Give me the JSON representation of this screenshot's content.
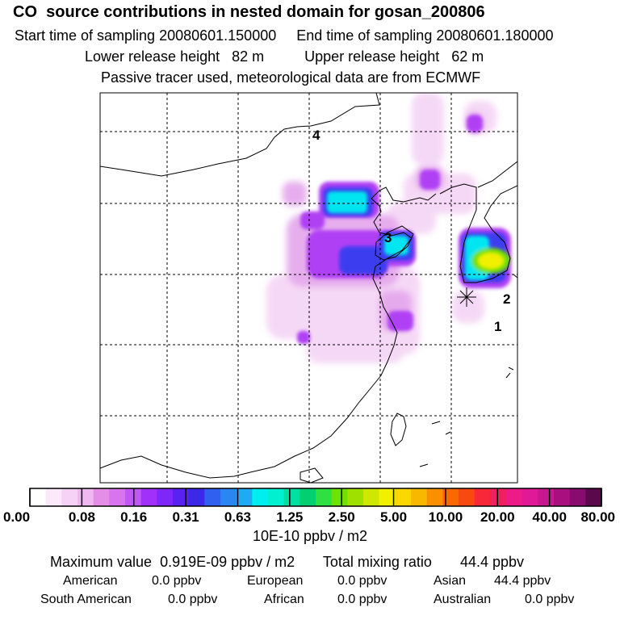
{
  "header": {
    "title": "CO  source contributions in nested domain for gosan_200806",
    "start_label": "Start time of sampling 20080601.150000",
    "end_label": "End time of sampling 20080601.180000",
    "lower_label": "Lower release height   82 m",
    "upper_label": "Upper release height   62 m",
    "note": "Passive tracer used, meteorological data are from ECMWF"
  },
  "chart_data": {
    "type": "heatmap",
    "title": "CO  source contributions in nested domain for gosan_200806",
    "grid": true,
    "annotations": [
      "1",
      "2",
      "3",
      "4"
    ],
    "colorbar": {
      "unit": "10E-10 ppbv / m2",
      "tick_labels": [
        "0.00",
        "0.08",
        "0.16",
        "0.31",
        "0.63",
        "1.25",
        "2.50",
        "5.00",
        "10.00",
        "20.00",
        "40.00",
        "80.00"
      ],
      "colors": [
        "#ffffff",
        "#fbe8fb",
        "#f6d2f6",
        "#f0b8f0",
        "#e48ee8",
        "#d874ec",
        "#c058f6",
        "#a030fa",
        "#7d28f8",
        "#5a22f2",
        "#3c28e8",
        "#3060f0",
        "#2a86f2",
        "#20aaf4",
        "#00eeee",
        "#00f0d0",
        "#00e0a0",
        "#00d070",
        "#30e040",
        "#70e000",
        "#a0e000",
        "#d0e800",
        "#f0f000",
        "#f8d800",
        "#f8b800",
        "#f89000",
        "#f86a00",
        "#f84a10",
        "#f82838",
        "#f02060",
        "#ee1a8a",
        "#e01a96",
        "#c81890",
        "#a81080",
        "#880c6e",
        "#5a0a4a"
      ]
    },
    "summary": {
      "max_label": "Maximum value",
      "max_value": "0.919E-09 ppbv / m2",
      "total_label": "Total mixing ratio",
      "total_value": "44.4 ppbv"
    },
    "sources": [
      {
        "name": "American",
        "value": "0.0 ppbv"
      },
      {
        "name": "European",
        "value": "0.0 ppbv"
      },
      {
        "name": "Asian",
        "value": "44.4 ppbv"
      },
      {
        "name": "South American",
        "value": "0.0 ppbv"
      },
      {
        "name": "African",
        "value": "0.0 ppbv"
      },
      {
        "name": "Australian",
        "value": "0.0 ppbv"
      }
    ]
  }
}
